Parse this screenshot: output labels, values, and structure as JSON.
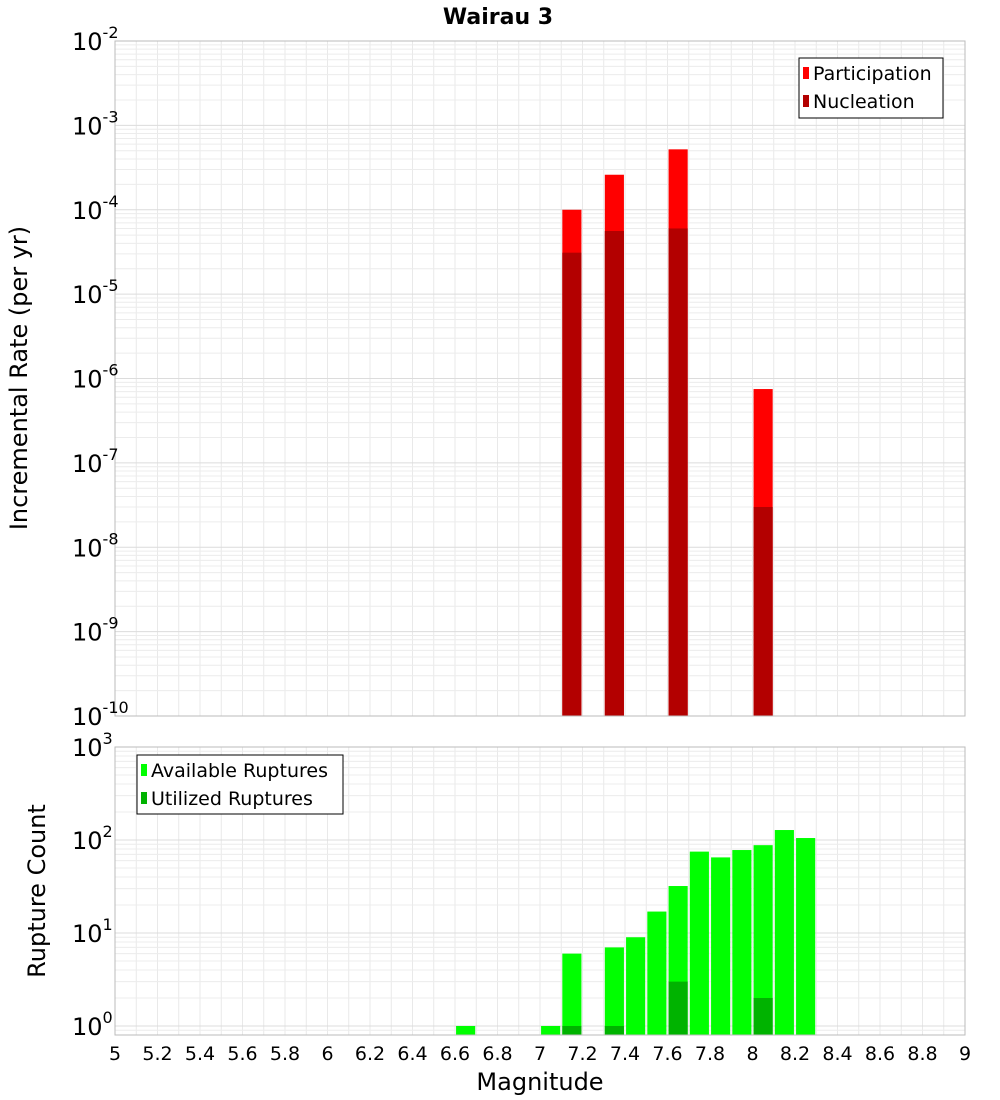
{
  "chart_data": [
    {
      "type": "bar",
      "title": "Wairau 3",
      "xlabel": "",
      "ylabel": "Incremental Rate (per yr)",
      "yscale": "log",
      "ylim": [
        1e-10,
        0.01
      ],
      "xlim": [
        5,
        9
      ],
      "grid": true,
      "legend_position": "top-right",
      "ytick_exponents": [
        "-10",
        "-9",
        "-8",
        "-7",
        "-6",
        "-5",
        "-4",
        "-3",
        "-2"
      ],
      "ytick_base": "10",
      "x": [
        7.15,
        7.35,
        7.65,
        8.05
      ],
      "series": [
        {
          "name": "Participation",
          "color": "#ff0000",
          "values": [
            0.0001,
            0.00026,
            0.00052,
            7.5e-07
          ]
        },
        {
          "name": "Nucleation",
          "color": "#b30000",
          "values": [
            3.1e-05,
            5.6e-05,
            6e-05,
            3e-08
          ]
        }
      ]
    },
    {
      "type": "bar",
      "title": "",
      "xlabel": "Magnitude",
      "ylabel": "Rupture Count",
      "yscale": "log",
      "ylim": [
        0.8,
        1000
      ],
      "xlim": [
        5,
        9
      ],
      "grid": true,
      "legend_position": "top-left",
      "ytick_exponents": [
        "0",
        "1",
        "2",
        "3"
      ],
      "ytick_base": "10",
      "xticks": [
        "5",
        "5.2",
        "5.4",
        "5.6",
        "5.8",
        "6",
        "6.2",
        "6.4",
        "6.6",
        "6.8",
        "7",
        "7.2",
        "7.4",
        "7.6",
        "7.8",
        "8",
        "8.2",
        "8.4",
        "8.6",
        "8.8",
        "9"
      ],
      "x": [
        6.65,
        7.05,
        7.15,
        7.35,
        7.45,
        7.55,
        7.65,
        7.75,
        7.85,
        7.95,
        8.05,
        8.15,
        8.25
      ],
      "series": [
        {
          "name": "Available Ruptures",
          "color": "#00ff00",
          "values": [
            1,
            1,
            6,
            7,
            9,
            17,
            32,
            75,
            65,
            78,
            88,
            128,
            105
          ]
        },
        {
          "name": "Utilized Ruptures",
          "color": "#00b300",
          "values": [
            0,
            0,
            1,
            1,
            0,
            0,
            3,
            0,
            0,
            0,
            2,
            0,
            0
          ]
        }
      ]
    }
  ]
}
